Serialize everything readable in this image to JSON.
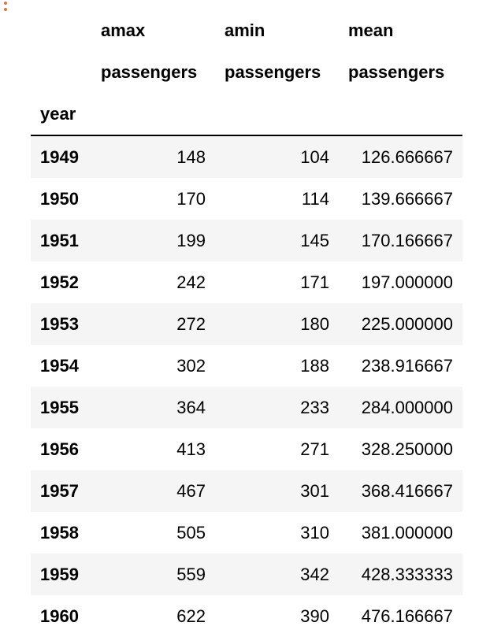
{
  "dataframe": {
    "columns_level0": [
      "amax",
      "amin",
      "mean"
    ],
    "columns_level1": [
      "passengers",
      "passengers",
      "passengers"
    ],
    "index_name": "year",
    "rows": [
      {
        "year": "1949",
        "amax": "148",
        "amin": "104",
        "mean": "126.666667"
      },
      {
        "year": "1950",
        "amax": "170",
        "amin": "114",
        "mean": "139.666667"
      },
      {
        "year": "1951",
        "amax": "199",
        "amin": "145",
        "mean": "170.166667"
      },
      {
        "year": "1952",
        "amax": "242",
        "amin": "171",
        "mean": "197.000000"
      },
      {
        "year": "1953",
        "amax": "272",
        "amin": "180",
        "mean": "225.000000"
      },
      {
        "year": "1954",
        "amax": "302",
        "amin": "188",
        "mean": "238.916667"
      },
      {
        "year": "1955",
        "amax": "364",
        "amin": "233",
        "mean": "284.000000"
      },
      {
        "year": "1956",
        "amax": "413",
        "amin": "271",
        "mean": "328.250000"
      },
      {
        "year": "1957",
        "amax": "467",
        "amin": "301",
        "mean": "368.416667"
      },
      {
        "year": "1958",
        "amax": "505",
        "amin": "310",
        "mean": "381.000000"
      },
      {
        "year": "1959",
        "amax": "559",
        "amin": "342",
        "mean": "428.333333"
      },
      {
        "year": "1960",
        "amax": "622",
        "amin": "390",
        "mean": "476.166667"
      }
    ]
  },
  "icons": {
    "cell_menu": "kebab-vertical-icon"
  },
  "colors": {
    "cell_menu": "#e8713a",
    "stripe": "#f5f5f5"
  }
}
